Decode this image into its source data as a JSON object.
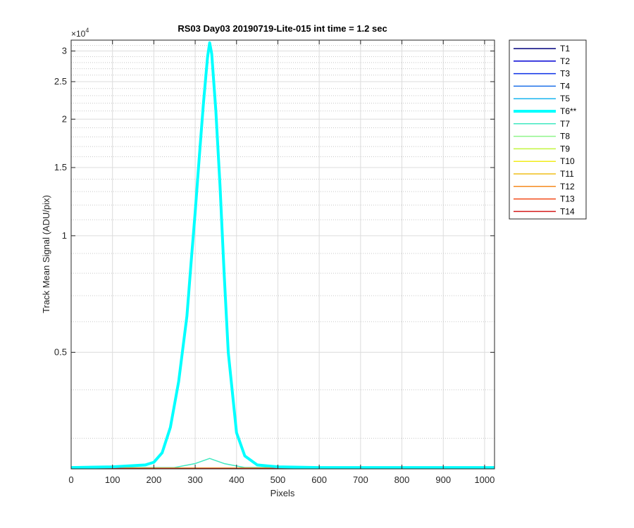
{
  "chart_data": {
    "type": "line",
    "title": "RS03 Day03 20190719-Lite-015 int time = 1.2 sec",
    "xlabel": "Pixels",
    "ylabel": "Track Mean Signal (ADU/pix)",
    "y_exponent_label": "×10",
    "y_exponent_power": "4",
    "xlim": [
      0,
      1024
    ],
    "ylim": [
      2500,
      32000
    ],
    "yscale": "log",
    "grid": true,
    "legend_position": "outside-right",
    "x_ticks": [
      0,
      100,
      200,
      300,
      400,
      500,
      600,
      700,
      800,
      900,
      1000
    ],
    "x_tick_labels": [
      "0",
      "100",
      "200",
      "300",
      "400",
      "500",
      "600",
      "700",
      "800",
      "900",
      "1000"
    ],
    "y_ticks": [
      5000,
      10000,
      15000,
      20000,
      25000,
      30000
    ],
    "y_tick_labels": [
      "0.5",
      "1",
      "1.5",
      "2",
      "2.5",
      "3"
    ],
    "x_minor_grid": [],
    "y_minor_grid": [
      3000,
      4000,
      6000,
      7000,
      8000,
      9000,
      11000,
      12000,
      13000,
      14000,
      16000,
      17000,
      18000,
      19000,
      21000,
      22000,
      23000,
      24000,
      26000,
      27000,
      28000,
      29000,
      31000
    ],
    "series": [
      {
        "name": "T1",
        "color": "#00007f",
        "width": 1.5,
        "x": [
          0,
          1024
        ],
        "y": [
          2510,
          2510
        ]
      },
      {
        "name": "T2",
        "color": "#0000d4",
        "width": 1.5,
        "x": [
          0,
          1024
        ],
        "y": [
          2510,
          2510
        ]
      },
      {
        "name": "T3",
        "color": "#0a2fe6",
        "width": 1.5,
        "x": [
          0,
          1024
        ],
        "y": [
          2510,
          2510
        ]
      },
      {
        "name": "T4",
        "color": "#1b6fe8",
        "width": 1.5,
        "x": [
          0,
          1024
        ],
        "y": [
          2510,
          2510
        ]
      },
      {
        "name": "T5",
        "color": "#19b6ef",
        "width": 1.5,
        "x": [
          0,
          1024
        ],
        "y": [
          2510,
          2510
        ]
      },
      {
        "name": "T6**",
        "color": "#00ffff",
        "width": 4,
        "x": [
          0,
          100,
          180,
          200,
          220,
          240,
          260,
          280,
          290,
          300,
          310,
          320,
          330,
          335,
          340,
          350,
          360,
          370,
          380,
          400,
          420,
          450,
          500,
          600,
          700,
          800,
          900,
          1024
        ],
        "y": [
          2520,
          2530,
          2560,
          2600,
          2750,
          3200,
          4200,
          6200,
          8500,
          11500,
          16000,
          22000,
          29000,
          31500,
          29500,
          21000,
          13500,
          8000,
          5000,
          3100,
          2700,
          2560,
          2530,
          2520,
          2520,
          2520,
          2520,
          2520
        ]
      },
      {
        "name": "T7",
        "color": "#3fe8c0",
        "width": 1.5,
        "x": [
          0,
          250,
          300,
          335,
          370,
          420,
          1024
        ],
        "y": [
          2515,
          2520,
          2580,
          2660,
          2580,
          2520,
          2515
        ]
      },
      {
        "name": "T8",
        "color": "#8ef58a",
        "width": 1.5,
        "x": [
          0,
          1024
        ],
        "y": [
          2512,
          2512
        ]
      },
      {
        "name": "T9",
        "color": "#c3f53e",
        "width": 1.5,
        "x": [
          0,
          1024
        ],
        "y": [
          2512,
          2512
        ]
      },
      {
        "name": "T10",
        "color": "#f2ec1b",
        "width": 1.5,
        "x": [
          0,
          1024
        ],
        "y": [
          2510,
          2510
        ]
      },
      {
        "name": "T11",
        "color": "#f0bd1a",
        "width": 1.5,
        "x": [
          0,
          1024
        ],
        "y": [
          2510,
          2510
        ]
      },
      {
        "name": "T12",
        "color": "#f58a1e",
        "width": 1.5,
        "x": [
          0,
          1024
        ],
        "y": [
          2508,
          2508
        ]
      },
      {
        "name": "T13",
        "color": "#f24a1a",
        "width": 1.5,
        "x": [
          0,
          1024
        ],
        "y": [
          2508,
          2508
        ]
      },
      {
        "name": "T14",
        "color": "#d41a1a",
        "width": 1.5,
        "x": [
          0,
          1024
        ],
        "y": [
          2505,
          2505
        ]
      }
    ]
  }
}
